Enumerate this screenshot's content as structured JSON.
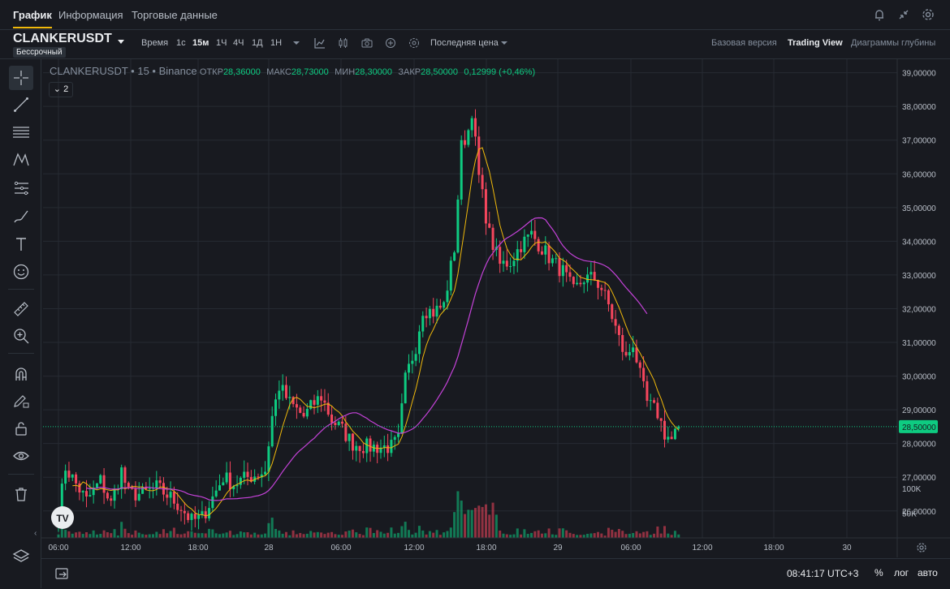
{
  "tabs": [
    {
      "label": "График",
      "active": true
    },
    {
      "label": "Информация",
      "active": false
    },
    {
      "label": "Торговые данные",
      "active": false
    }
  ],
  "symbol": {
    "name": "CLANKERUSDT",
    "badge": "Бессрочный"
  },
  "toolbar": {
    "time_label": "Время",
    "intervals": [
      "1с",
      "15м",
      "1Ч",
      "4Ч",
      "1Д",
      "1Н"
    ],
    "active_interval": "15м",
    "price_type": "Последняя цена",
    "views": [
      "Базовая версия",
      "Trading View",
      "Диаграммы глубины"
    ],
    "active_view": "Trading View"
  },
  "legend": {
    "title": "CLANKERUSDT • 15 • Binance",
    "open_label": "ОТКР",
    "open": "28,36000",
    "high_label": "МАКС",
    "high": "28,73000",
    "low_label": "МИН",
    "low": "28,30000",
    "close_label": "ЗАКР",
    "close": "28,50000",
    "change": "0,12999 (+0,46%)",
    "collapsed_count": "2"
  },
  "bottom": {
    "clock": "08:41:17 UTC+3",
    "percent": "%",
    "log": "лог",
    "auto": "авто"
  },
  "colors": {
    "up": "#0ecb81",
    "down": "#f6465d",
    "ma_fast": "#f0b90b",
    "ma_slow": "#c442d8"
  },
  "chart_data": {
    "type": "candlestick",
    "interval": "15м",
    "x_ticks": [
      "06:00",
      "12:00",
      "18:00",
      "28",
      "06:00",
      "12:00",
      "18:00",
      "29",
      "06:00",
      "12:00",
      "18:00",
      "30"
    ],
    "y_ticks": [
      "26,00000",
      "27,00000",
      "28,00000",
      "29,00000",
      "30,00000",
      "31,00000",
      "32,00000",
      "33,00000",
      "34,00000",
      "35,00000",
      "36,00000",
      "37,00000",
      "38,00000",
      "39,00000"
    ],
    "ylim": [
      25.2,
      39.4
    ],
    "last_price": "28,50000",
    "last_price_value": 28.5,
    "volume_ticks": [
      "100K",
      "50K"
    ],
    "volume_max": 115,
    "anchors_time_price": [
      [
        0,
        25.9
      ],
      [
        2,
        27.3
      ],
      [
        5,
        26.8
      ],
      [
        8,
        26.3
      ],
      [
        12,
        26.9
      ],
      [
        15,
        26.2
      ],
      [
        18,
        27.2
      ],
      [
        20,
        26.5
      ],
      [
        24,
        26.5
      ],
      [
        28,
        26.7
      ],
      [
        32,
        26.4
      ],
      [
        35,
        26.1
      ],
      [
        38,
        25.7
      ],
      [
        41,
        25.8
      ],
      [
        44,
        26.4
      ],
      [
        47,
        27.0
      ],
      [
        50,
        26.8
      ],
      [
        54,
        27.0
      ],
      [
        57,
        27.1
      ],
      [
        59,
        27.2
      ],
      [
        61,
        28.8
      ],
      [
        63,
        29.7
      ],
      [
        66,
        29.2
      ],
      [
        70,
        28.8
      ],
      [
        73,
        29.2
      ],
      [
        75,
        29.4
      ],
      [
        78,
        28.7
      ],
      [
        81,
        28.4
      ],
      [
        84,
        28.0
      ],
      [
        88,
        27.9
      ],
      [
        92,
        27.9
      ],
      [
        95,
        27.9
      ],
      [
        97,
        28.1
      ],
      [
        99,
        29.9
      ],
      [
        102,
        30.9
      ],
      [
        104,
        32.0
      ],
      [
        107,
        31.9
      ],
      [
        110,
        32.1
      ],
      [
        113,
        33.8
      ],
      [
        115,
        36.8
      ],
      [
        117,
        37.3
      ],
      [
        118,
        37.9
      ],
      [
        120,
        35.9
      ],
      [
        123,
        34.2
      ],
      [
        126,
        33.3
      ],
      [
        129,
        33.4
      ],
      [
        132,
        33.9
      ],
      [
        135,
        34.2
      ],
      [
        138,
        33.8
      ],
      [
        141,
        33.4
      ],
      [
        144,
        33.1
      ],
      [
        147,
        32.5
      ],
      [
        150,
        32.9
      ],
      [
        153,
        32.9
      ],
      [
        155,
        32.6
      ],
      [
        157,
        32.1
      ],
      [
        160,
        31.1
      ],
      [
        162,
        30.5
      ],
      [
        164,
        31.0
      ],
      [
        166,
        30.0
      ],
      [
        168,
        29.2
      ],
      [
        171,
        28.9
      ],
      [
        173,
        28.3
      ],
      [
        175,
        28.1
      ],
      [
        177,
        28.5
      ]
    ]
  }
}
